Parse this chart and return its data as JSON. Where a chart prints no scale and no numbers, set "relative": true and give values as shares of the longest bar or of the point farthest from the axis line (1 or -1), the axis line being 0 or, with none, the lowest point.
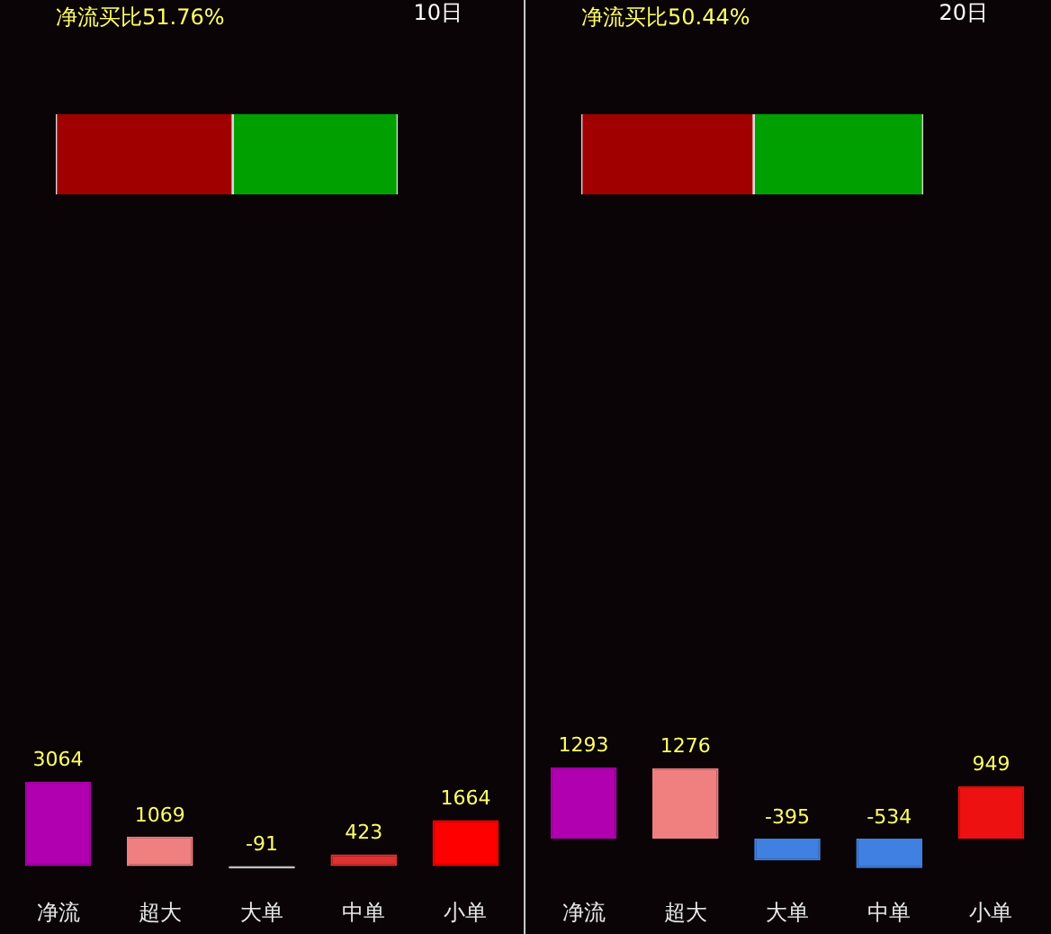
{
  "chart_data": [
    {
      "type": "bar",
      "title": "净流买比51.76%",
      "annotations": [
        "10日"
      ],
      "categories": [
        null
      ],
      "stacked": true,
      "orientation": "horizontal",
      "relative": true,
      "tick_labels": false,
      "series": [
        {
          "color": "#a00000",
          "values": [
            0.5176
          ]
        },
        {
          "color": "#00a000",
          "values": [
            0.4824
          ]
        }
      ]
    },
    {
      "type": "bar",
      "categories": [
        "净流",
        "超大",
        "大单",
        "中单",
        "小单"
      ],
      "values": [
        3064,
        1069,
        -91,
        423,
        1664
      ],
      "colors": [
        "#b000b0",
        "#f08080",
        "#c0c0c0",
        "#e03030",
        "#ff0000"
      ],
      "tick_labels": "x",
      "data_labels": true
    },
    {
      "type": "bar",
      "title": "净流买比50.44%",
      "annotations": [
        "20日"
      ],
      "categories": [
        null
      ],
      "stacked": true,
      "orientation": "horizontal",
      "relative": true,
      "tick_labels": false,
      "series": [
        {
          "color": "#a00000",
          "values": [
            0.5044
          ]
        },
        {
          "color": "#00a000",
          "values": [
            0.4956
          ]
        }
      ]
    },
    {
      "type": "bar",
      "categories": [
        "净流",
        "超大",
        "大单",
        "中单",
        "小单"
      ],
      "values": [
        1293,
        1276,
        -395,
        -534,
        949
      ],
      "colors": [
        "#b000b0",
        "#f08080",
        "#4080e0",
        "#4080e0",
        "#ee1111"
      ],
      "tick_labels": "x",
      "data_labels": true
    }
  ]
}
